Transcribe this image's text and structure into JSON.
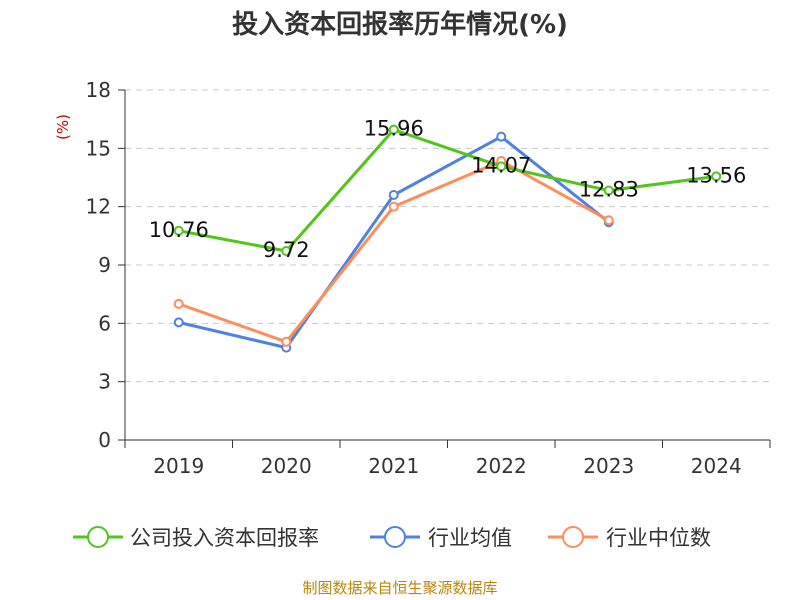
{
  "chart_data": {
    "type": "line",
    "title": "投入资本回报率历年情况(%)",
    "ylabel": "(%)",
    "xlabel": "",
    "categories": [
      "2019",
      "2020",
      "2021",
      "2022",
      "2023",
      "2024"
    ],
    "yticks": [
      "0",
      "3",
      "6",
      "9",
      "12",
      "15",
      "18"
    ],
    "ylim": [
      0,
      18
    ],
    "grid": true,
    "legend_position": "bottom",
    "series": [
      {
        "name": "公司投入资本回报率",
        "color": "#52c41a",
        "values": [
          10.76,
          9.72,
          15.96,
          14.07,
          12.83,
          13.56
        ],
        "labels": [
          "10.76",
          "9.72",
          "15.96",
          "14.07",
          "12.83",
          "13.56"
        ]
      },
      {
        "name": "行业均值",
        "color": "#4f81e0",
        "values": [
          6.05,
          4.75,
          12.6,
          15.6,
          11.2,
          null
        ]
      },
      {
        "name": "行业中位数",
        "color": "#ff8c5a",
        "values": [
          7.0,
          5.05,
          12.0,
          14.35,
          11.3,
          null
        ]
      }
    ],
    "source": "制图数据来自恒生聚源数据库"
  }
}
